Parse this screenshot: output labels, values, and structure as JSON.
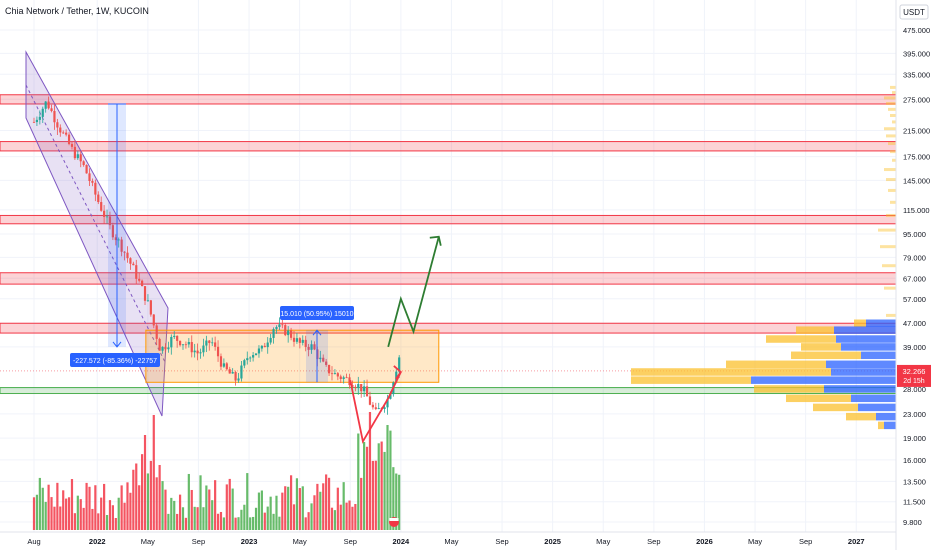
{
  "chart_data": {
    "type": "candlestick",
    "title": "Chia Network / Tether, 1W, KUCOIN",
    "currency": "USDT",
    "y_scale": "log",
    "y_ticks": [
      "475.000",
      "395.000",
      "335.000",
      "275.000",
      "215.000",
      "175.000",
      "145.000",
      "115.000",
      "95.000",
      "79.000",
      "67.000",
      "57.000",
      "47.000",
      "39.000",
      "32.266",
      "28.000",
      "23.000",
      "19.000",
      "16.000",
      "13.500",
      "11.500",
      "9.800"
    ],
    "x_ticks": [
      "Aug",
      "2022",
      "May",
      "Sep",
      "2023",
      "May",
      "Sep",
      "2024",
      "May",
      "Sep",
      "2025",
      "May",
      "Sep",
      "2026",
      "May",
      "Sep",
      "2027"
    ],
    "last_price": {
      "value": "32.266",
      "countdown": "2d 15h",
      "color": "#f23645"
    },
    "resistance_zones": [
      {
        "low": 265,
        "high": 285
      },
      {
        "low": 183,
        "high": 197
      },
      {
        "low": 103,
        "high": 110
      },
      {
        "low": 64,
        "high": 70
      },
      {
        "low": 43.5,
        "high": 47
      }
    ],
    "support_zone": {
      "low": 27,
      "high": 28.3
    },
    "range_box": {
      "start": "2022-05",
      "end": "2024-04",
      "low": 29.5,
      "high": 44.5
    },
    "channel": {
      "start": "2021-08",
      "end": "2022-05"
    },
    "measure_down": {
      "label": "-227.572 (-85.36%) -22757",
      "from": 265,
      "to": 39
    },
    "measure_up": {
      "label": "15.010 (50.95%) 15010",
      "from": 29.5,
      "to": 44.5
    },
    "projection_green": [
      [
        "2023-12",
        39
      ],
      [
        "2024-01",
        57
      ],
      [
        "2024-02",
        44
      ],
      [
        "2024-04",
        93
      ]
    ],
    "projection_red": [
      [
        "2023-09",
        30
      ],
      [
        "2023-10",
        18.5
      ],
      [
        "2023-12",
        26
      ],
      [
        "2024-01",
        32
      ]
    ],
    "colors": {
      "up": "#26a69a",
      "down": "#ef5350",
      "vol_up": "#4caf50",
      "vol_down": "#f23645",
      "box": "#ff9800",
      "projection_green": "#2e7d32",
      "projection_red": "#f23645",
      "zone": "#f23645",
      "support": "#4caf50",
      "vp_up": "#2962ff",
      "vp_down": "#fbc02d",
      "label_bg": "#2962ff"
    }
  }
}
